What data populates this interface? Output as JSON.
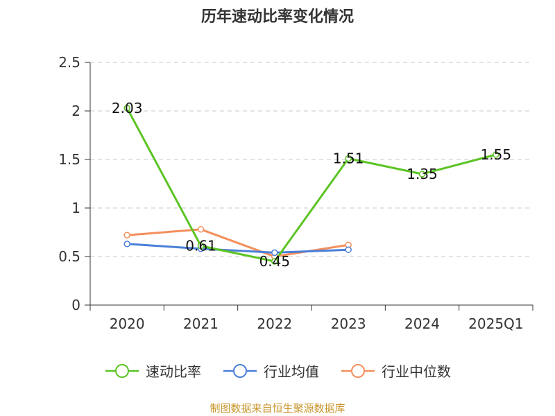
{
  "chart_data": {
    "type": "line",
    "title": "历年速动比率变化情况",
    "categories": [
      "2020",
      "2021",
      "2022",
      "2023",
      "2024",
      "2025Q1"
    ],
    "ylim": [
      0,
      2.5
    ],
    "yticks": [
      0,
      0.5,
      1,
      1.5,
      2,
      2.5
    ],
    "grid": true,
    "legend_position": "bottom",
    "series": [
      {
        "name": "速动比率",
        "color": "#5cc424",
        "values": [
          2.03,
          0.61,
          0.45,
          1.51,
          1.35,
          1.55
        ],
        "labels": true
      },
      {
        "name": "行业均值",
        "color": "#4a7fd8",
        "values": [
          0.63,
          0.58,
          0.54,
          0.57,
          null,
          null
        ],
        "labels": false
      },
      {
        "name": "行业中位数",
        "color": "#f38f5c",
        "values": [
          0.72,
          0.78,
          0.5,
          0.62,
          null,
          null
        ],
        "labels": false
      }
    ]
  },
  "source": "制图数据来自恒生聚源数据库"
}
